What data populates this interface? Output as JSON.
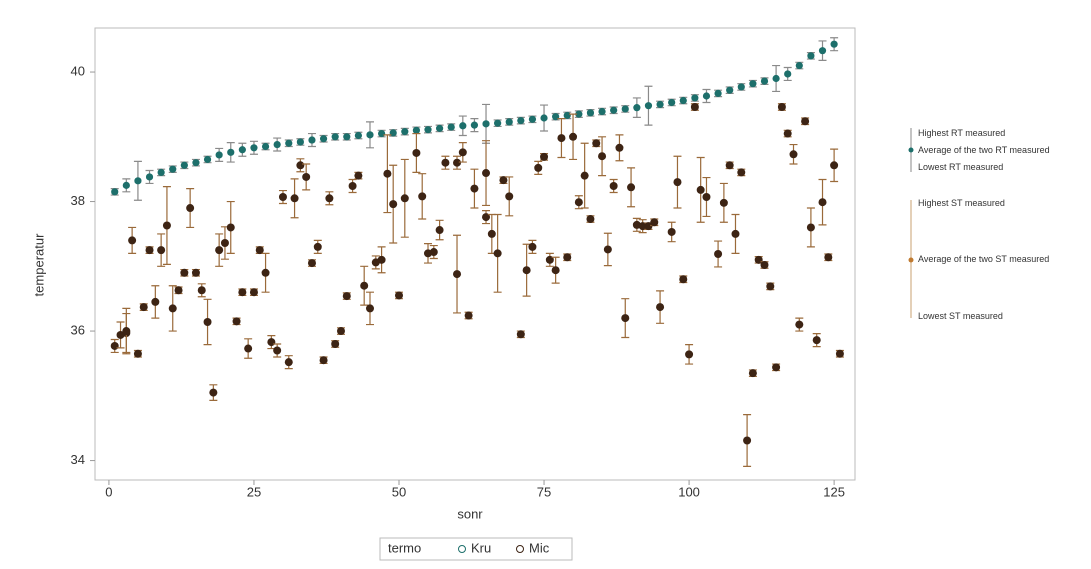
{
  "chart_data": {
    "type": "scatter",
    "x_label": "sonr",
    "y_label": "temperatur",
    "legend_title": "termo",
    "xlim": [
      -2.4,
      128.6
    ],
    "ylim": [
      33.7,
      40.68
    ],
    "xticks": [
      0,
      25,
      50,
      75,
      100,
      125
    ],
    "yticks": [
      34,
      36,
      38,
      40
    ],
    "series": [
      {
        "name": "Kru",
        "color": "#1d6f6b",
        "error_color": "#8a8a8a",
        "x": [
          1,
          3,
          5,
          7,
          9,
          11,
          13,
          15,
          17,
          19,
          21,
          23,
          25,
          27,
          29,
          31,
          33,
          35,
          37,
          39,
          41,
          43,
          45,
          47,
          49,
          51,
          53,
          55,
          57,
          59,
          61,
          63,
          65,
          67,
          69,
          71,
          73,
          75,
          77,
          79,
          81,
          83,
          85,
          87,
          89,
          91,
          93,
          95,
          97,
          99,
          101,
          103,
          105,
          107,
          109,
          111,
          113,
          115,
          117,
          119,
          121,
          123,
          125
        ],
        "values": [
          38.15,
          38.25,
          38.32,
          38.38,
          38.45,
          38.5,
          38.56,
          38.6,
          38.65,
          38.72,
          38.76,
          38.8,
          38.83,
          38.85,
          38.88,
          38.9,
          38.92,
          38.95,
          38.97,
          39.0,
          39.0,
          39.02,
          39.03,
          39.05,
          39.06,
          39.08,
          39.1,
          39.11,
          39.13,
          39.15,
          39.17,
          39.18,
          39.2,
          39.21,
          39.23,
          39.25,
          39.27,
          39.29,
          39.31,
          39.33,
          39.35,
          39.37,
          39.39,
          39.41,
          39.43,
          39.45,
          39.48,
          39.5,
          39.53,
          39.56,
          39.6,
          39.63,
          39.67,
          39.72,
          39.77,
          39.82,
          39.86,
          39.9,
          39.97,
          40.1,
          40.25,
          40.33,
          40.43
        ],
        "errors": [
          0.05,
          0.1,
          0.3,
          0.1,
          0.05,
          0.05,
          0.05,
          0.05,
          0.05,
          0.1,
          0.15,
          0.1,
          0.1,
          0.05,
          0.1,
          0.05,
          0.05,
          0.1,
          0.05,
          0.05,
          0.05,
          0.05,
          0.2,
          0.05,
          0.05,
          0.05,
          0.05,
          0.05,
          0.05,
          0.05,
          0.15,
          0.1,
          0.3,
          0.05,
          0.05,
          0.05,
          0.05,
          0.2,
          0.05,
          0.05,
          0.05,
          0.05,
          0.05,
          0.05,
          0.05,
          0.15,
          0.3,
          0.05,
          0.05,
          0.05,
          0.05,
          0.1,
          0.05,
          0.05,
          0.05,
          0.05,
          0.05,
          0.2,
          0.1,
          0.05,
          0.05,
          0.15,
          0.1
        ]
      },
      {
        "name": "Mic",
        "color": "#3d2414",
        "error_color": "#9a6a3a",
        "x": [
          1,
          2,
          3,
          3,
          4,
          5,
          6,
          7,
          8,
          9,
          10,
          11,
          12,
          13,
          14,
          15,
          16,
          17,
          18,
          19,
          20,
          21,
          22,
          23,
          24,
          25,
          26,
          27,
          28,
          29,
          30,
          31,
          32,
          33,
          34,
          35,
          36,
          37,
          38,
          39,
          40,
          41,
          42,
          43,
          44,
          45,
          46,
          47,
          48,
          49,
          50,
          51,
          53,
          54,
          55,
          56,
          57,
          58,
          60,
          60,
          61,
          62,
          63,
          65,
          65,
          66,
          67,
          68,
          69,
          71,
          72,
          73,
          74,
          75,
          76,
          77,
          78,
          79,
          80,
          81,
          82,
          83,
          84,
          85,
          86,
          87,
          88,
          89,
          90,
          91,
          92,
          93,
          94,
          95,
          97,
          98,
          99,
          100,
          101,
          102,
          103,
          105,
          106,
          107,
          108,
          109,
          110,
          111,
          112,
          113,
          114,
          115,
          116,
          117,
          118,
          119,
          120,
          121,
          122,
          123,
          124,
          125,
          126
        ],
        "values": [
          35.77,
          35.94,
          35.97,
          36.0,
          37.4,
          35.65,
          36.37,
          37.25,
          36.45,
          37.25,
          37.63,
          36.35,
          36.63,
          36.9,
          37.9,
          36.9,
          36.63,
          36.14,
          35.05,
          37.25,
          37.36,
          37.6,
          36.15,
          36.6,
          35.73,
          36.6,
          37.25,
          36.9,
          35.83,
          35.7,
          38.07,
          35.52,
          38.05,
          38.56,
          38.38,
          37.05,
          37.3,
          35.55,
          38.05,
          35.8,
          36.0,
          36.54,
          38.24,
          38.4,
          36.7,
          36.35,
          37.06,
          37.1,
          38.43,
          37.96,
          36.55,
          38.05,
          38.75,
          38.08,
          37.2,
          37.22,
          37.56,
          38.6,
          38.6,
          36.88,
          38.76,
          36.24,
          38.2,
          37.76,
          38.44,
          37.5,
          37.2,
          38.33,
          38.08,
          35.95,
          36.94,
          37.3,
          38.52,
          38.69,
          37.1,
          36.94,
          38.98,
          37.14,
          39.0,
          37.99,
          38.4,
          37.73,
          38.9,
          38.7,
          37.26,
          38.24,
          38.83,
          36.2,
          38.22,
          37.64,
          37.62,
          37.62,
          37.68,
          36.37,
          37.53,
          38.3,
          36.8,
          35.64,
          39.46,
          38.18,
          38.07,
          37.19,
          37.98,
          38.56,
          37.5,
          38.45,
          34.31,
          35.35,
          37.1,
          37.02,
          36.69,
          35.44,
          39.46,
          39.05,
          38.73,
          36.1,
          39.24,
          37.6,
          35.86,
          37.99,
          37.14,
          38.56,
          35.65
        ],
        "errors": [
          0.1,
          0.2,
          0.3,
          0.35,
          0.2,
          0.05,
          0.05,
          0.05,
          0.25,
          0.25,
          0.6,
          0.35,
          0.05,
          0.05,
          0.3,
          0.05,
          0.1,
          0.35,
          0.12,
          0.25,
          0.25,
          0.4,
          0.05,
          0.05,
          0.15,
          0.05,
          0.05,
          0.3,
          0.1,
          0.1,
          0.1,
          0.1,
          0.3,
          0.1,
          0.2,
          0.05,
          0.1,
          0.05,
          0.1,
          0.05,
          0.05,
          0.05,
          0.1,
          0.05,
          0.3,
          0.25,
          0.1,
          0.2,
          0.6,
          0.6,
          0.05,
          0.6,
          0.3,
          0.35,
          0.15,
          0.1,
          0.15,
          0.1,
          0.1,
          0.6,
          0.15,
          0.05,
          0.3,
          0.1,
          0.5,
          0.3,
          0.6,
          0.05,
          0.3,
          0.05,
          0.4,
          0.1,
          0.1,
          0.05,
          0.1,
          0.2,
          0.3,
          0.05,
          0.35,
          0.1,
          0.5,
          0.05,
          0.05,
          0.3,
          0.25,
          0.1,
          0.2,
          0.3,
          0.3,
          0.1,
          0.1,
          0.05,
          0.05,
          0.25,
          0.15,
          0.4,
          0.05,
          0.15,
          0.05,
          0.5,
          0.3,
          0.2,
          0.3,
          0.05,
          0.3,
          0.05,
          0.4,
          0.05,
          0.05,
          0.05,
          0.05,
          0.05,
          0.05,
          0.05,
          0.15,
          0.1,
          0.05,
          0.3,
          0.1,
          0.35,
          0.05,
          0.25,
          0.05
        ]
      }
    ],
    "annotations": [
      "Highest RT measured",
      "Average of the two RT measured",
      "Lowest RT measured",
      "Highest ST measured",
      "Average of the two ST measured",
      "Lowest ST measured"
    ]
  }
}
